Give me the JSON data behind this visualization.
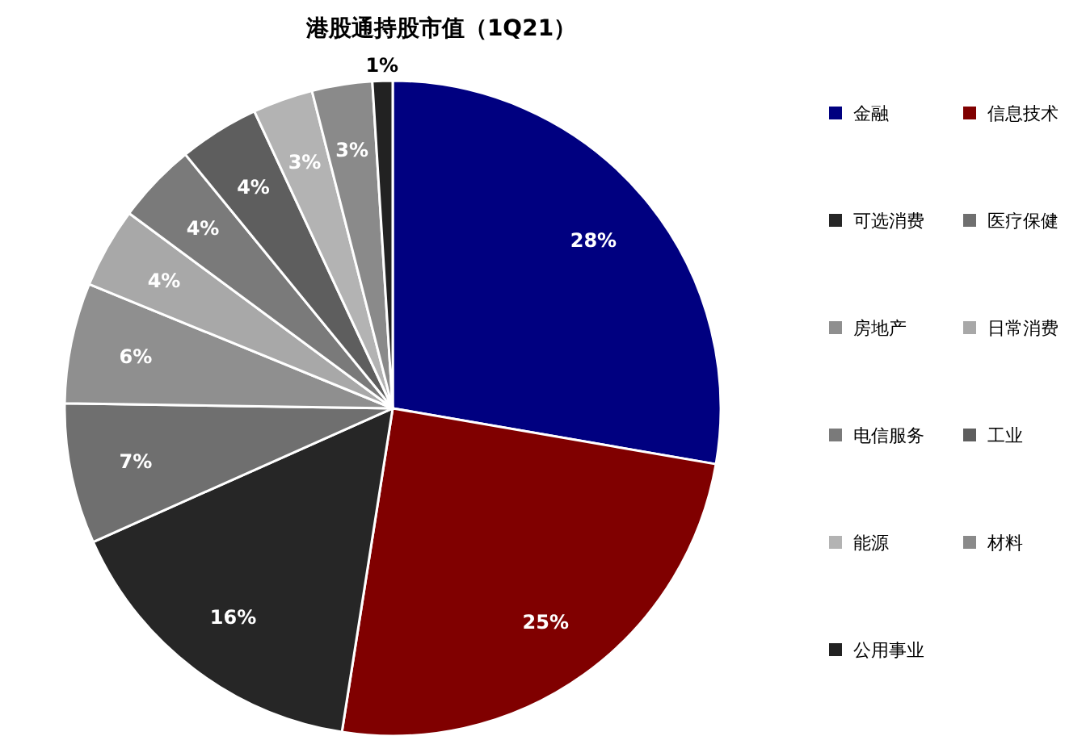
{
  "chart_data": {
    "type": "pie",
    "title": "港股通持股市值（1Q21）",
    "categories": [
      "金融",
      "信息技术",
      "可选消费",
      "医疗保健",
      "房地产",
      "日常消费",
      "电信服务",
      "工业",
      "能源",
      "材料",
      "公用事业"
    ],
    "values": [
      28,
      25,
      16,
      7,
      6,
      4,
      4,
      4,
      3,
      3,
      1
    ],
    "colors": [
      "#000080",
      "#800000",
      "#262626",
      "#6f6f6f",
      "#8f8f8f",
      "#a8a8a8",
      "#7a7a7a",
      "#5e5e5e",
      "#b3b3b3",
      "#8a8a8a",
      "#222222"
    ],
    "value_labels": [
      "28%",
      "25%",
      "16%",
      "7%",
      "6%",
      "4%",
      "4%",
      "4%",
      "3%",
      "3%",
      "1%"
    ],
    "legend": "right"
  }
}
